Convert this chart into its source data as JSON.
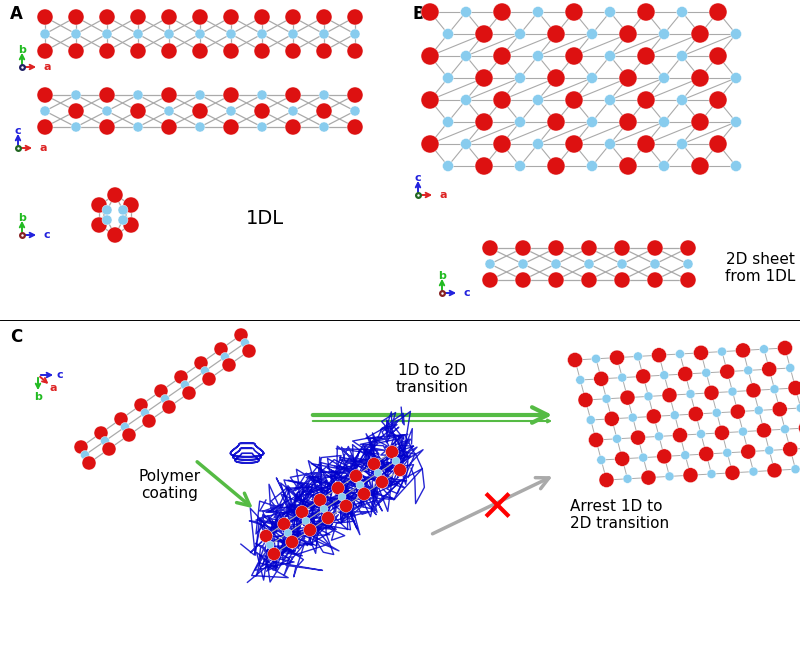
{
  "fig_width": 8.0,
  "fig_height": 6.51,
  "dpi": 100,
  "bg_color": "#ffffff",
  "red_atom": "#dd1111",
  "cyan_atom": "#88ccee",
  "bond_color": "#aaaaaa",
  "label_A": "A",
  "label_B": "B",
  "label_C": "C",
  "label_1DL": "1DL",
  "label_2D": "2D sheet\nfrom 1DL",
  "label_1D_to_2D": "1D to 2D\ntransition",
  "label_polymer": "Polymer\ncoating",
  "label_arrest": "Arrest 1D to\n2D transition",
  "green_arrow": "#55bb44",
  "gray_arrow": "#aaaaaa",
  "polymer_color": "#0000cc",
  "axis_b_color": "#22bb22",
  "axis_a_color": "#dd2222",
  "axis_c_color": "#2222dd",
  "font_size_axis": 8,
  "font_size_panel": 12
}
